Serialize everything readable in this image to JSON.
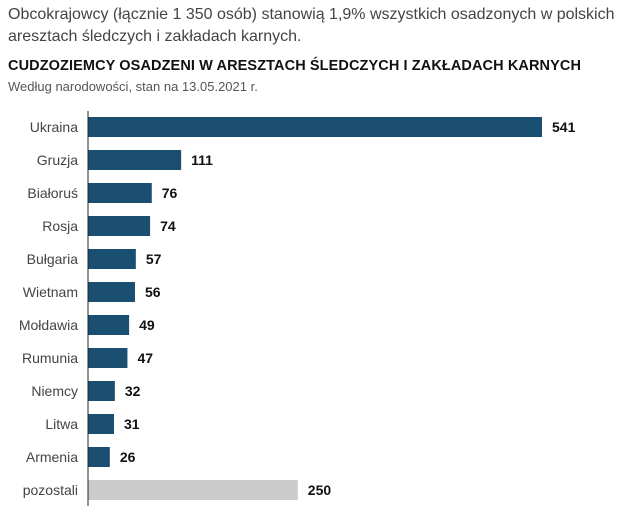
{
  "intro_text": "Obcokrajowcy (łącznie 1 350 osób) stanowią 1,9% wszystkich osadzonych w polskich aresztach śledczych i zakładach karnych.",
  "chart_data": {
    "type": "bar",
    "orientation": "horizontal",
    "title": "CUDZOZIEMCY OSADZENI W ARESZTACH ŚLEDCZYCH I ZAKŁADACH KARNYCH",
    "subtitle": "Według narodowości, stan na 13.05.2021 r.",
    "categories": [
      "Ukraina",
      "Gruzja",
      "Białoruś",
      "Rosja",
      "Bułgaria",
      "Wietnam",
      "Mołdawia",
      "Rumunia",
      "Niemcy",
      "Litwa",
      "Armenia",
      "pozostali"
    ],
    "values": [
      541,
      111,
      76,
      74,
      57,
      56,
      49,
      47,
      32,
      31,
      26,
      250
    ],
    "value_labels": [
      "541",
      "111",
      "76",
      "74",
      "57",
      "56",
      "49",
      "47",
      "32",
      "31",
      "26",
      "250"
    ],
    "xlim": [
      0,
      541
    ],
    "grid": false,
    "colors": {
      "bar": "#1b4f72",
      "other_bar": "#cccccc",
      "axis": "#222222"
    },
    "highlight": {
      "pozostali": "other_bar"
    }
  }
}
